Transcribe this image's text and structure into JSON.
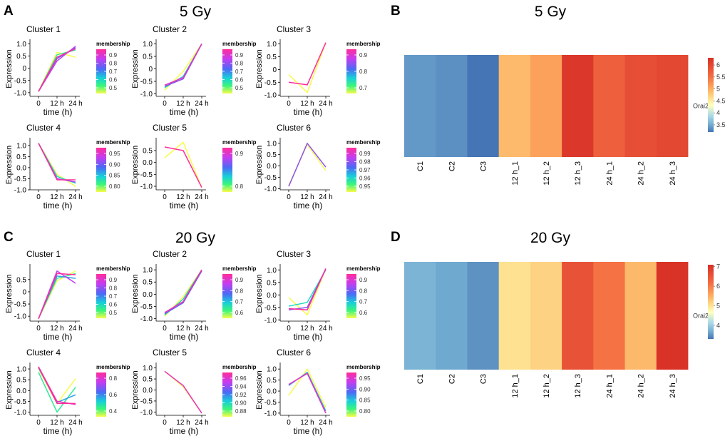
{
  "panels": {
    "A": {
      "label": "A",
      "title": "5 Gy"
    },
    "B": {
      "label": "B",
      "title": "5 Gy"
    },
    "C": {
      "label": "C",
      "title": "20 Gy"
    },
    "D": {
      "label": "D",
      "title": "20 Gy"
    }
  },
  "chart_data": [
    {
      "panel": "A",
      "type": "line",
      "title": "5 Gy",
      "xlabel": "time (h)",
      "ylabel": "Expression",
      "legend_title": "membership",
      "x_categories": [
        "0",
        "12 h",
        "24 h"
      ],
      "clusters": [
        {
          "name": "Cluster 1",
          "ylim": [
            -1.15,
            1.1
          ],
          "yticks": [
            "1.0",
            "0.5",
            "0",
            "-0.5",
            "-1.0"
          ],
          "yvals": [
            1.0,
            0.5,
            0,
            -0.5,
            -1.0
          ],
          "legend_ticks": [
            "0.9",
            "0.8",
            "0.7",
            "0.6",
            "0.5"
          ],
          "series": [
            {
              "values": [
                -0.95,
                0.65,
                0.45
              ],
              "membership": 0.5
            },
            {
              "values": [
                -0.95,
                0.55,
                0.75
              ],
              "membership": 0.6
            },
            {
              "values": [
                -0.95,
                0.4,
                0.85
              ],
              "membership": 0.75
            },
            {
              "values": [
                -0.95,
                0.3,
                0.9
              ],
              "membership": 0.85
            },
            {
              "values": [
                -0.95,
                0.45,
                0.8
              ],
              "membership": 0.95
            }
          ]
        },
        {
          "name": "Cluster 2",
          "ylim": [
            -1.1,
            1.1
          ],
          "yticks": [
            "1.0",
            "0.5",
            "0",
            "-0.5",
            "-1.0"
          ],
          "yvals": [
            1.0,
            0.5,
            0,
            -0.5,
            -1.0
          ],
          "legend_ticks": [
            "0.9",
            "0.8",
            "0.7",
            "0.6",
            "0.5"
          ],
          "series": [
            {
              "values": [
                -0.85,
                -0.1,
                1.0
              ],
              "membership": 0.5
            },
            {
              "values": [
                -0.75,
                -0.3,
                1.0
              ],
              "membership": 0.65
            },
            {
              "values": [
                -0.7,
                -0.4,
                1.0
              ],
              "membership": 0.8
            },
            {
              "values": [
                -0.65,
                -0.35,
                1.0
              ],
              "membership": 0.9
            }
          ]
        },
        {
          "name": "Cluster 3",
          "ylim": [
            -1.05,
            1.1
          ],
          "yticks": [
            "1.0",
            "0.5",
            "0",
            "-0.5",
            "-1.0"
          ],
          "yvals": [
            1.0,
            0.5,
            0,
            -0.5,
            -1.0
          ],
          "legend_ticks": [
            "0.9",
            "0.8",
            "0.7"
          ],
          "series": [
            {
              "values": [
                -0.2,
                -0.9,
                1.05
              ],
              "membership": 0.65
            },
            {
              "values": [
                -0.5,
                -0.6,
                1.05
              ],
              "membership": 0.95
            }
          ]
        },
        {
          "name": "Cluster 4",
          "ylim": [
            -1.0,
            1.25
          ],
          "yticks": [
            "1.0",
            "0.5",
            "0.0",
            "-0.5",
            "-1.0"
          ],
          "yvals": [
            1.0,
            0.5,
            0,
            -0.5,
            -1.0
          ],
          "legend_ticks": [
            "0.95",
            "0.90",
            "0.85",
            "0.80"
          ],
          "series": [
            {
              "values": [
                1.1,
                -0.3,
                -0.85
              ],
              "membership": 0.8
            },
            {
              "values": [
                1.1,
                -0.4,
                -0.7
              ],
              "membership": 0.85
            },
            {
              "values": [
                1.1,
                -0.5,
                -0.65
              ],
              "membership": 0.92
            },
            {
              "values": [
                1.1,
                -0.55,
                -0.55
              ],
              "membership": 0.98
            }
          ]
        },
        {
          "name": "Cluster 5",
          "ylim": [
            -1.15,
            0.95
          ],
          "yticks": [
            "0.5",
            "0.0",
            "-0.5",
            "-1.0"
          ],
          "yvals": [
            0.5,
            0,
            -0.5,
            -1.0
          ],
          "legend_ticks": [
            "0.9",
            "0.8"
          ],
          "series": [
            {
              "values": [
                0.2,
                0.85,
                -1.05
              ],
              "membership": 0.75
            },
            {
              "values": [
                0.65,
                0.5,
                -1.05
              ],
              "membership": 0.95
            }
          ]
        },
        {
          "name": "Cluster 6",
          "ylim": [
            -1.05,
            1.15
          ],
          "yticks": [
            "1.0",
            "0.5",
            "0.0",
            "-0.5",
            "-1.0"
          ],
          "yvals": [
            1.0,
            0.5,
            0,
            -0.5,
            -1.0
          ],
          "legend_ticks": [
            "0.99",
            "0.98",
            "0.97",
            "0.96",
            "0.95"
          ],
          "series": [
            {
              "values": [
                -0.85,
                0.95,
                -0.2
              ],
              "membership": 0.95
            },
            {
              "values": [
                -0.9,
                1.0,
                -0.05
              ],
              "membership": 0.98
            }
          ]
        }
      ]
    },
    {
      "panel": "B",
      "type": "heatmap",
      "title": "5 Gy",
      "columns": [
        "C1",
        "C2",
        "C3",
        "12 h_1",
        "12 h_2",
        "12 h_3",
        "24 h_1",
        "24 h_2",
        "24 h_3"
      ],
      "rows": [
        "Orai2"
      ],
      "values": [
        [
          3.4,
          3.35,
          3.2,
          4.9,
          5.1,
          6.2,
          5.7,
          5.9,
          6.0
        ]
      ],
      "colorbar_ticks": [
        "6",
        "5.5",
        "5",
        "4.5",
        "4",
        "3.5"
      ],
      "colorbar_values": [
        6,
        5.5,
        5,
        4.5,
        4,
        3.5
      ],
      "colorbar_range": [
        3.2,
        6.3
      ]
    },
    {
      "panel": "C",
      "type": "line",
      "title": "20 Gy",
      "xlabel": "time (h)",
      "ylabel": "Expression",
      "legend_title": "membership",
      "x_categories": [
        "0",
        "12 h",
        "24 h"
      ],
      "clusters": [
        {
          "name": "Cluster 1",
          "ylim": [
            -1.2,
            1.05
          ],
          "yticks": [
            "0.5",
            "0",
            "-0.5",
            "-1.0"
          ],
          "yvals": [
            0.5,
            0,
            -0.5,
            -1.0
          ],
          "legend_ticks": [
            "0.9",
            "0.8",
            "0.7",
            "0.6",
            "0.5"
          ],
          "series": [
            {
              "values": [
                -1.1,
                0.45,
                0.85
              ],
              "membership": 0.5
            },
            {
              "values": [
                -1.1,
                0.55,
                0.75
              ],
              "membership": 0.6
            },
            {
              "values": [
                -1.1,
                0.65,
                0.55
              ],
              "membership": 0.7
            },
            {
              "values": [
                -1.1,
                0.85,
                0.35
              ],
              "membership": 0.85
            },
            {
              "values": [
                -1.1,
                0.75,
                0.7
              ],
              "membership": 0.95
            }
          ]
        },
        {
          "name": "Cluster 2",
          "ylim": [
            -1.1,
            1.15
          ],
          "yticks": [
            "1.0",
            "0.5",
            "0.0",
            "-0.5",
            "-1.0"
          ],
          "yvals": [
            1.0,
            0.5,
            0,
            -0.5,
            -1.0
          ],
          "legend_ticks": [
            "0.9",
            "0.8",
            "0.7",
            "0.6"
          ],
          "series": [
            {
              "values": [
                -0.9,
                -0.1,
                1.0
              ],
              "membership": 0.6
            },
            {
              "values": [
                -0.85,
                -0.2,
                1.0
              ],
              "membership": 0.7
            },
            {
              "values": [
                -0.8,
                -0.35,
                0.95
              ],
              "membership": 0.8
            },
            {
              "values": [
                -0.75,
                -0.3,
                1.0
              ],
              "membership": 0.92
            }
          ]
        },
        {
          "name": "Cluster 3",
          "ylim": [
            -1.05,
            1.15
          ],
          "yticks": [
            "1.0",
            "0.5",
            "0.0",
            "-0.5",
            "-1.0"
          ],
          "yvals": [
            1.0,
            0.5,
            0,
            -0.5,
            -1.0
          ],
          "legend_ticks": [
            "0.9",
            "0.8",
            "0.7",
            "0.6"
          ],
          "series": [
            {
              "values": [
                -0.1,
                -0.8,
                1.05
              ],
              "membership": 0.6
            },
            {
              "values": [
                -0.45,
                -0.3,
                1.0
              ],
              "membership": 0.7
            },
            {
              "values": [
                -0.6,
                -0.5,
                1.05
              ],
              "membership": 0.82
            },
            {
              "values": [
                -0.55,
                -0.6,
                1.05
              ],
              "membership": 0.95
            }
          ]
        },
        {
          "name": "Cluster 4",
          "ylim": [
            -1.15,
            1.2
          ],
          "yticks": [
            "1.0",
            "0.5",
            "0.0",
            "-0.5",
            "-1.0"
          ],
          "yvals": [
            1.0,
            0.5,
            0,
            -0.5,
            -1.0
          ],
          "legend_ticks": [
            "0.8",
            "0.6",
            "0.4"
          ],
          "series": [
            {
              "values": [
                1.0,
                -0.6,
                0.55
              ],
              "membership": 0.4
            },
            {
              "values": [
                0.85,
                -1.0,
                0.15
              ],
              "membership": 0.5
            },
            {
              "values": [
                1.05,
                -0.55,
                -0.2
              ],
              "membership": 0.6
            },
            {
              "values": [
                1.1,
                -0.5,
                -0.65
              ],
              "membership": 0.8
            },
            {
              "values": [
                1.1,
                -0.6,
                -0.6
              ],
              "membership": 0.9
            }
          ]
        },
        {
          "name": "Cluster 5",
          "ylim": [
            -1.15,
            1.15
          ],
          "yticks": [
            "1.0",
            "0.5",
            "0.0",
            "-0.5",
            "-1.0"
          ],
          "yvals": [
            1.0,
            0.5,
            0,
            -0.5,
            -1.0
          ],
          "legend_ticks": [
            "0.96",
            "0.94",
            "0.92",
            "0.90",
            "0.88"
          ],
          "series": [
            {
              "values": [
                0.85,
                0.15,
                -1.05
              ],
              "membership": 0.88
            },
            {
              "values": [
                0.85,
                0.2,
                -1.05
              ],
              "membership": 0.96
            }
          ]
        },
        {
          "name": "Cluster 6",
          "ylim": [
            -1.1,
            1.2
          ],
          "yticks": [
            "1.0",
            "0.5",
            "0.0",
            "-0.5",
            "-1.0"
          ],
          "yvals": [
            1.0,
            0.5,
            0,
            -0.5,
            -1.0
          ],
          "legend_ticks": [
            "0.95",
            "0.90",
            "0.85",
            "0.80"
          ],
          "series": [
            {
              "values": [
                -0.2,
                1.0,
                -0.75
              ],
              "membership": 0.8
            },
            {
              "values": [
                0.25,
                0.85,
                -0.9
              ],
              "membership": 0.87
            },
            {
              "values": [
                0.3,
                0.8,
                -1.0
              ],
              "membership": 0.95
            }
          ]
        }
      ]
    },
    {
      "panel": "D",
      "type": "heatmap",
      "title": "20 Gy",
      "columns": [
        "C1",
        "C2",
        "C3",
        "12 h_1",
        "12 h_2",
        "12 h_3",
        "24 h_1",
        "24 h_2",
        "24 h_3"
      ],
      "rows": [
        "Orai2"
      ],
      "values": [
        [
          3.75,
          3.65,
          3.5,
          5.0,
          5.15,
          6.55,
          6.1,
          5.4,
          7.05
        ]
      ],
      "colorbar_ticks": [
        "7",
        "6",
        "5",
        "4"
      ],
      "colorbar_values": [
        7,
        6,
        5,
        4
      ],
      "colorbar_range": [
        3.3,
        7.1
      ]
    }
  ]
}
